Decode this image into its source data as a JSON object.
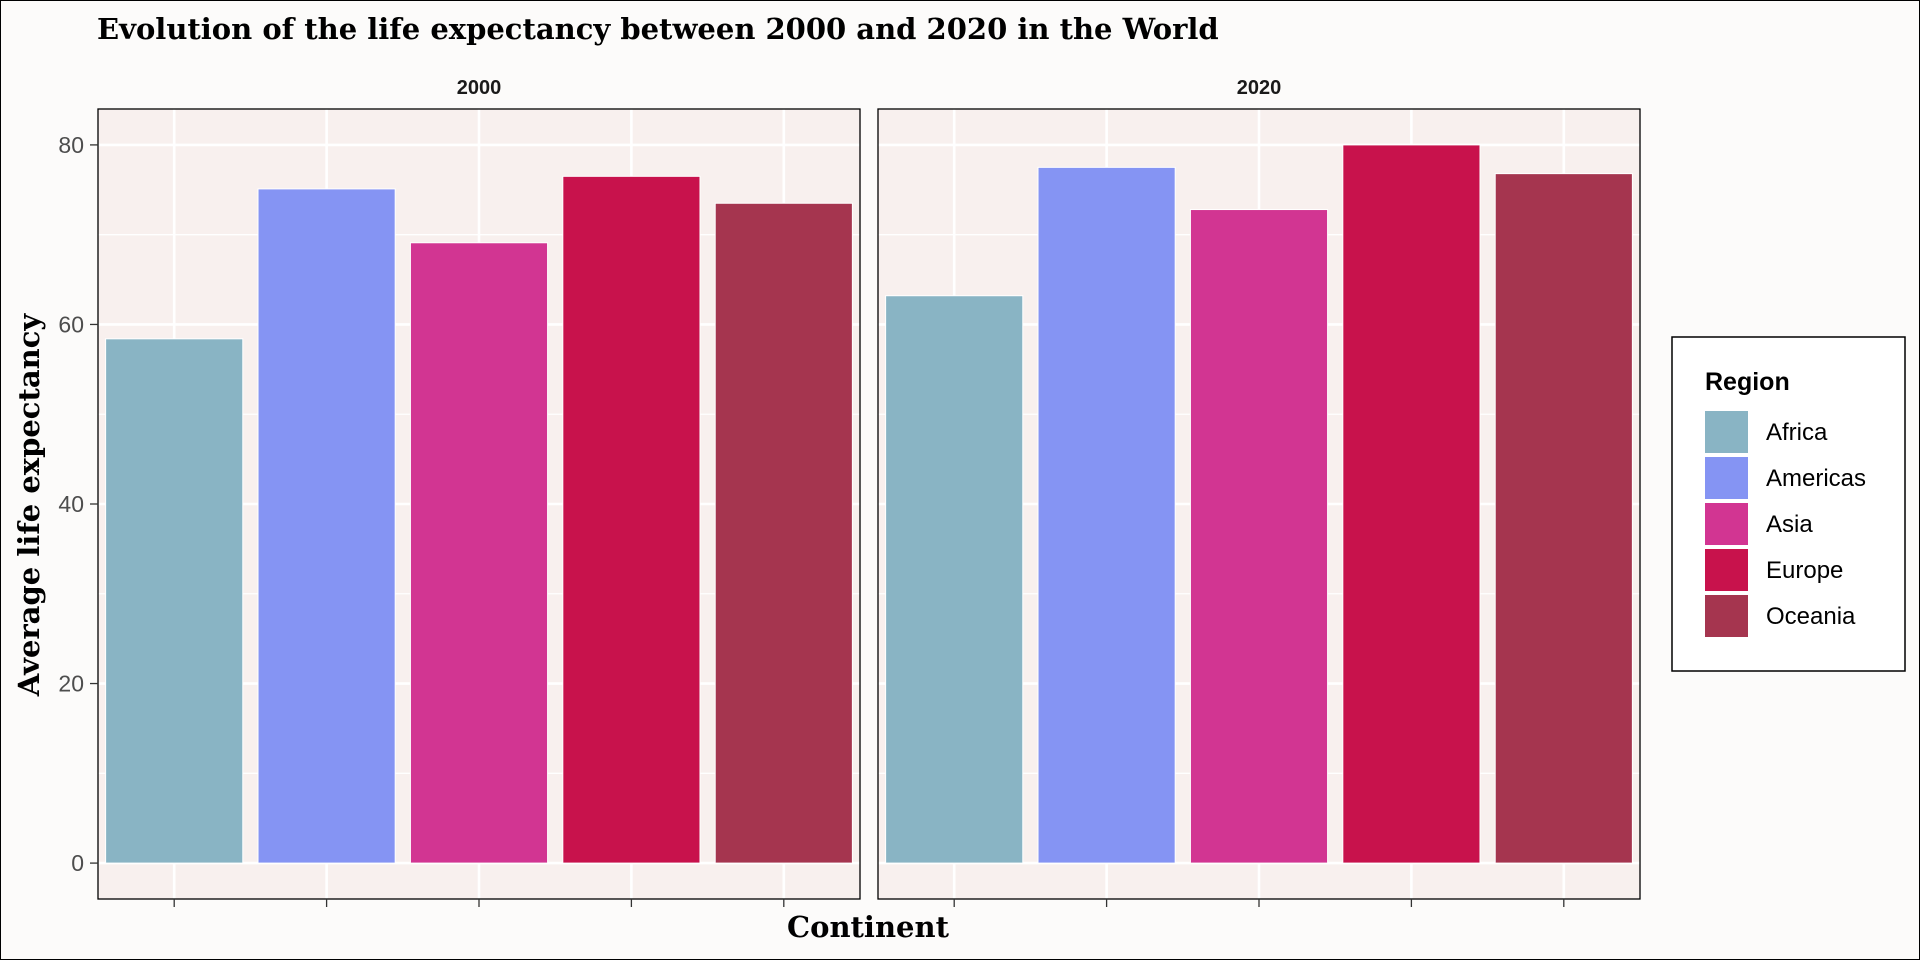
{
  "chart_data": {
    "type": "bar",
    "title": "Evolution of the life expectancy between 2000 and 2020 in the World",
    "xlabel": "Continent",
    "ylabel": "Average life expectancy",
    "ylim": [
      -4,
      84
    ],
    "yticks": [
      0,
      20,
      40,
      60,
      80
    ],
    "facets": [
      {
        "label": "2000",
        "values": [
          58.4,
          75.1,
          69.1,
          76.5,
          73.5
        ]
      },
      {
        "label": "2020",
        "values": [
          63.2,
          77.5,
          72.8,
          80.0,
          76.8
        ]
      }
    ],
    "categories": [
      "Africa",
      "Americas",
      "Asia",
      "Europe",
      "Oceania"
    ],
    "colors": [
      "#89b4c4",
      "#8594f3",
      "#d23592",
      "#c8124c",
      "#a5354f"
    ],
    "legend": {
      "title": "Region",
      "position": "right"
    },
    "grid": true,
    "panel_background": "#f8f0ee"
  }
}
